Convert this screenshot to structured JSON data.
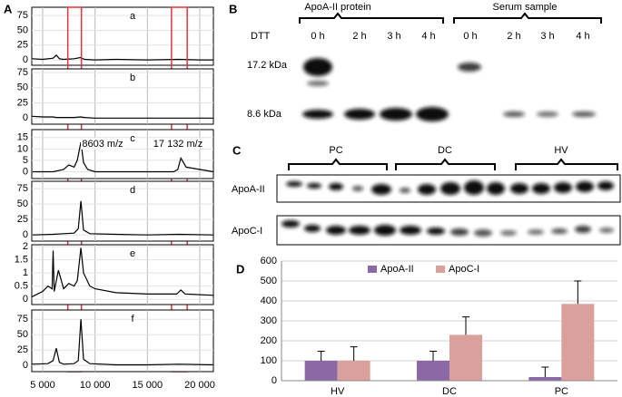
{
  "chart_data": [
    {
      "type": "line",
      "panel_label": "A",
      "title": "a",
      "color": "#000000",
      "x": [
        4000,
        5000,
        6000,
        6300,
        6600,
        7000,
        8000,
        8600,
        9000,
        10000,
        12000,
        15000,
        18000,
        20000,
        21300
      ],
      "values": [
        2,
        1,
        3,
        8,
        2,
        1,
        2,
        4,
        1,
        0,
        1,
        0,
        1,
        0,
        0
      ],
      "xlim": [
        3960,
        21300
      ],
      "ylim": [
        -9,
        89
      ],
      "xticks": [
        {
          "value": 5000,
          "label": "5 000"
        },
        {
          "value": 10000,
          "label": "10 000"
        },
        {
          "value": 15000,
          "label": "15 000"
        },
        {
          "value": 20000,
          "label": "20 000"
        }
      ],
      "yticks": [
        0,
        25,
        50,
        75
      ],
      "grid": true,
      "highlight_ranges": [
        [
          7400,
          8700
        ],
        [
          17300,
          18800
        ]
      ],
      "highlight_color": "#e8323c"
    },
    {
      "type": "line",
      "title": "b",
      "color": "#000000",
      "x": [
        4000,
        5000,
        6000,
        6300,
        6600,
        7000,
        8000,
        8600,
        9000,
        10000,
        12000,
        15000,
        18000,
        20000,
        21300
      ],
      "values": [
        3,
        2,
        2,
        1,
        1,
        1,
        1,
        2,
        1,
        0,
        0,
        0,
        0,
        0,
        0
      ],
      "xlim": [
        3960,
        21300
      ],
      "ylim": [
        -10,
        81
      ],
      "xticks": [
        {
          "value": 5000,
          "label": "5 000"
        },
        {
          "value": 10000,
          "label": "10 000"
        },
        {
          "value": 15000,
          "label": "15 000"
        },
        {
          "value": 20000,
          "label": "20 000"
        }
      ],
      "yticks": [
        0,
        25,
        50,
        75
      ],
      "grid": true
    },
    {
      "type": "line",
      "title": "c",
      "color": "#000000",
      "x": [
        4000,
        6000,
        7000,
        7500,
        8000,
        8300,
        8650,
        8900,
        9300,
        10000,
        15000,
        17500,
        17900,
        18200,
        18700,
        21300
      ],
      "values": [
        0,
        0,
        1,
        3,
        2,
        5,
        13,
        4,
        1,
        0,
        0,
        0,
        1,
        6,
        2,
        0
      ],
      "xlim": [
        3960,
        21300
      ],
      "ylim": [
        -3,
        18.5
      ],
      "xticks": [
        {
          "value": 5000,
          "label": "5 000"
        },
        {
          "value": 10000,
          "label": "10 000"
        },
        {
          "value": 15000,
          "label": "15 000"
        },
        {
          "value": 20000,
          "label": "20 000"
        }
      ],
      "yticks": [
        0,
        5,
        10,
        15
      ],
      "grid": true,
      "annotations": [
        "8603 m/z",
        "17 132 m/z"
      ]
    },
    {
      "type": "line",
      "title": "d",
      "color": "#000000",
      "x": [
        4000,
        6000,
        7000,
        8000,
        8400,
        8650,
        8900,
        9500,
        12000,
        15000,
        18000,
        21300
      ],
      "values": [
        0,
        1,
        2,
        3,
        10,
        55,
        8,
        2,
        1,
        0,
        1,
        0
      ],
      "xlim": [
        3960,
        21300
      ],
      "ylim": [
        -10,
        87
      ],
      "xticks": [
        {
          "value": 5000,
          "label": "5 000"
        },
        {
          "value": 10000,
          "label": "10 000"
        },
        {
          "value": 15000,
          "label": "15 000"
        },
        {
          "value": 20000,
          "label": "20 000"
        }
      ],
      "yticks": [
        0,
        25,
        50,
        75
      ],
      "grid": true
    },
    {
      "type": "line",
      "title": "e",
      "color": "#000000",
      "x": [
        4000,
        5000,
        5500,
        5900,
        6000,
        6100,
        6500,
        7000,
        7500,
        8000,
        8300,
        8650,
        8900,
        9500,
        10000,
        12000,
        15000,
        17800,
        18200,
        18600,
        21300
      ],
      "values": [
        0.1,
        0.3,
        0.5,
        0.4,
        1.85,
        0.3,
        1.1,
        0.4,
        0.6,
        0.5,
        0.7,
        1.95,
        1.0,
        0.5,
        0.4,
        0.25,
        0.2,
        0.2,
        0.35,
        0.2,
        0.15
      ],
      "xlim": [
        3960,
        21300
      ],
      "ylim": [
        -0.2,
        2.07
      ],
      "xticks": [
        {
          "value": 5000,
          "label": "5 000"
        },
        {
          "value": 10000,
          "label": "10 000"
        },
        {
          "value": 15000,
          "label": "15 000"
        },
        {
          "value": 20000,
          "label": "20 000"
        }
      ],
      "yticks": [
        0,
        0.5,
        1,
        1.5,
        2
      ],
      "grid": true
    },
    {
      "type": "line",
      "title": "f",
      "color": "#000000",
      "x": [
        4000,
        5500,
        6000,
        6300,
        6600,
        7000,
        8000,
        8400,
        8650,
        8900,
        9500,
        12000,
        15000,
        18000,
        21300
      ],
      "values": [
        2,
        3,
        8,
        28,
        5,
        2,
        3,
        8,
        75,
        10,
        3,
        1,
        1,
        2,
        1
      ],
      "xlim": [
        3960,
        21300
      ],
      "ylim": [
        -10,
        90
      ],
      "xticks": [
        {
          "value": 5000,
          "label": "5 000"
        },
        {
          "value": 10000,
          "label": "10 000"
        },
        {
          "value": 15000,
          "label": "15 000"
        },
        {
          "value": 20000,
          "label": "20 000"
        }
      ],
      "yticks": [
        0,
        25,
        50,
        75
      ],
      "grid": true
    },
    {
      "type": "bar",
      "panel_label": "D",
      "categories": [
        "HV",
        "DC",
        "PC"
      ],
      "series": [
        {
          "name": "ApoA-II",
          "color": "#8c68a6",
          "values": [
            100,
            100,
            18
          ],
          "errors": [
            48,
            48,
            50
          ]
        },
        {
          "name": "ApoC-I",
          "color": "#d9a09c",
          "values": [
            100,
            230,
            385
          ],
          "errors": [
            70,
            90,
            115
          ]
        }
      ],
      "ylim": [
        0,
        600
      ],
      "yticks": [
        0,
        100,
        200,
        300,
        400,
        500,
        600
      ],
      "grid": true,
      "legend": "top"
    }
  ],
  "panel_b": {
    "label": "B",
    "groups": [
      "ApoA-II protein",
      "Serum sample"
    ],
    "treatment": "DTT",
    "lanes": [
      "0 h",
      "2 h",
      "3 h",
      "4 h",
      "0 h",
      "2 h",
      "3 h",
      "4 h"
    ],
    "markers": [
      "17.2 kDa",
      "8.6 kDa"
    ]
  },
  "panel_c": {
    "label": "C",
    "groups": [
      "PC",
      "DC",
      "HV"
    ],
    "blots": [
      "ApoA-II",
      "ApoC-I"
    ]
  }
}
